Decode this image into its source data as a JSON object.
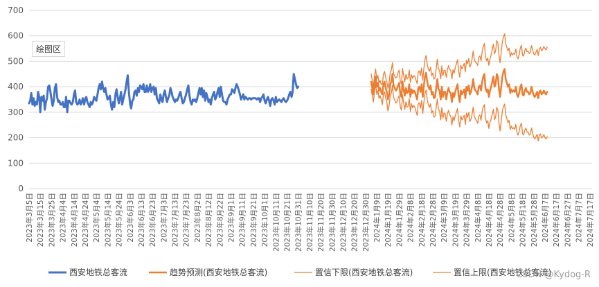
{
  "plot_area_label": "绘图区",
  "watermark": "CSDN @Kydog-R",
  "colors": {
    "actual": "#4472C4",
    "forecast": "#ED7D31",
    "grid": "#d9d9d9",
    "axis_text": "#595959"
  },
  "chart_data": {
    "type": "line",
    "title": "",
    "xlabel": "",
    "ylabel": "",
    "ylim": [
      0,
      700
    ],
    "yticks": [
      0,
      100,
      200,
      300,
      400,
      500,
      600,
      700
    ],
    "grid": "horizontal",
    "legend_position": "bottom",
    "x_tick_labels": [
      "2023年3月5日",
      "2023年3月15日",
      "2023年3月25日",
      "2023年4月4日",
      "2023年4月14日",
      "2023年4月24日",
      "2023年5月4日",
      "2023年5月14日",
      "2023年5月24日",
      "2023年6月3日",
      "2023年6月13日",
      "2023年6月23日",
      "2023年7月3日",
      "2023年7月13日",
      "2023年7月23日",
      "2023年8月2日",
      "2023年8月12日",
      "2023年8月22日",
      "2023年9月1日",
      "2023年9月11日",
      "2023年9月21日",
      "2023年10月1日",
      "2023年10月11日",
      "2023年10月21日",
      "2023年10月31日",
      "2023年11月10日",
      "2023年11月20日",
      "2023年11月30日",
      "2023年12月10日",
      "2023年12月20日",
      "2023年12月30日",
      "2024年1月9日",
      "2024年1月19日",
      "2024年1月29日",
      "2024年2月8日",
      "2024年2月18日",
      "2024年2月28日",
      "2024年3月9日",
      "2024年3月19日",
      "2024年3月29日",
      "2024年4月8日",
      "2024年4月18日",
      "2024年4月28日",
      "2024年5月8日",
      "2024年5月18日",
      "2024年5月28日",
      "2024年6月7日",
      "2024年6月17日",
      "2024年6月27日",
      "2024年7月7日",
      "2024年7月17日"
    ],
    "x_start": "2023-03-05",
    "series": [
      {
        "name": "西安地铁总客流",
        "start": "2023-03-05",
        "values": [
          335,
          345,
          375,
          330,
          355,
          325,
          340,
          330,
          380,
          360,
          300,
          360,
          345,
          365,
          310,
          340,
          355,
          400,
          405,
          380,
          350,
          325,
          345,
          395,
          410,
          360,
          340,
          345,
          330,
          330,
          340,
          320,
          320,
          360,
          300,
          345,
          345,
          335,
          330,
          340,
          370,
          385,
          340,
          330,
          335,
          350,
          330,
          340,
          355,
          330,
          350,
          360,
          340,
          330,
          320,
          340,
          330,
          340,
          360,
          350,
          345,
          370,
          395,
          410,
          390,
          420,
          395,
          380,
          395,
          370,
          350,
          355,
          365,
          330,
          310,
          340,
          320,
          370,
          390,
          360,
          335,
          355,
          380,
          330,
          350,
          370,
          390,
          420,
          445,
          380,
          335,
          315,
          345,
          350,
          380,
          385,
          365,
          395,
          380,
          405,
          400,
          390,
          410,
          380,
          380,
          405,
          380,
          390,
          410,
          380,
          395,
          400,
          370,
          395,
          355,
          345,
          335,
          370,
          350,
          340,
          370,
          385,
          360,
          340,
          355,
          365,
          395,
          380,
          360,
          350,
          340,
          350,
          345,
          355,
          370,
          380,
          355,
          335,
          340,
          355,
          370,
          390,
          405,
          365,
          340,
          330,
          350,
          345,
          350,
          340,
          355,
          375,
          395,
          370,
          395,
          360,
          385,
          345,
          375,
          360,
          340,
          350,
          330,
          355,
          370,
          380,
          350,
          360,
          380,
          395,
          360,
          400,
          370,
          345,
          340,
          340,
          330,
          350,
          360,
          370,
          370,
          390,
          385,
          375,
          395,
          410,
          400,
          385,
          370,
          350,
          360,
          370,
          350,
          360,
          355,
          350,
          355,
          355,
          350,
          355,
          355,
          355,
          355,
          350,
          355,
          355,
          340,
          355,
          360,
          370,
          345,
          335,
          350,
          360,
          345,
          325,
          350,
          355,
          345,
          330,
          360,
          340,
          345,
          350,
          345,
          340,
          350,
          355,
          345,
          340,
          345,
          355,
          370,
          380,
          360,
          380,
          450,
          430,
          410,
          395,
          400
        ],
        "color": "#4472C4"
      },
      {
        "name": "趋势预测(西安地铁总客流)",
        "start": "2024-01-04",
        "values": [
          420,
          395,
          370,
          410,
          440,
          400,
          415,
          385,
          395,
          380,
          370,
          410,
          420,
          395,
          380,
          350,
          370,
          410,
          420,
          450,
          405,
          395,
          385,
          390,
          405,
          415,
          370,
          360,
          420,
          390,
          365,
          395,
          375,
          380,
          410,
          360,
          390,
          375,
          385,
          380,
          365,
          350,
          395,
          400,
          380,
          410,
          360,
          405,
          440,
          455,
          420,
          400,
          390,
          405,
          370,
          380,
          355,
          360,
          395,
          430,
          390,
          385,
          350,
          400,
          360,
          380,
          380,
          350,
          380,
          395,
          380,
          375,
          340,
          375,
          360,
          380,
          395,
          410,
          365,
          340,
          385,
          370,
          380,
          390,
          355,
          400,
          385,
          405,
          370,
          380,
          400,
          430,
          395,
          385,
          380,
          370,
          400,
          405,
          385,
          420,
          440,
          450,
          395,
          380,
          390,
          360,
          385,
          400,
          420,
          440,
          400,
          410,
          450,
          440,
          390,
          360,
          400,
          440,
          460,
          470,
          430,
          415,
          400,
          410,
          375,
          390,
          380,
          385,
          380,
          400,
          370,
          360,
          375,
          400,
          410,
          370,
          365,
          385,
          395,
          380,
          380,
          370,
          375,
          400,
          380,
          365,
          360,
          370,
          380,
          355,
          380,
          385,
          370,
          375,
          385,
          375,
          370,
          380
        ],
        "color": "#ED7D31"
      },
      {
        "name": "置信下限(西安地铁总客流)",
        "start": "2024-01-04",
        "values": [
          390,
          365,
          340,
          380,
          410,
          370,
          385,
          355,
          365,
          350,
          330,
          370,
          380,
          355,
          340,
          305,
          325,
          365,
          375,
          405,
          358,
          348,
          336,
          341,
          355,
          365,
          320,
          308,
          368,
          337,
          311,
          341,
          320,
          324,
          354,
          303,
          333,
          317,
          326,
          320,
          304,
          288,
          333,
          337,
          316,
          346,
          295,
          339,
          373,
          387,
          351,
          330,
          319,
          333,
          297,
          306,
          280,
          284,
          318,
          352,
          311,
          305,
          269,
          318,
          277,
          296,
          295,
          264,
          293,
          307,
          291,
          285,
          249,
          283,
          267,
          286,
          300,
          314,
          268,
          242,
          286,
          270,
          279,
          288,
          252,
          296,
          280,
          299,
          263,
          272,
          291,
          320,
          284,
          273,
          267,
          256,
          285,
          289,
          268,
          302,
          321,
          330,
          274,
          258,
          267,
          236,
          260,
          274,
          293,
          312,
          271,
          280,
          319,
          308,
          257,
          226,
          265,
          304,
          323,
          332,
          291,
          275,
          259,
          268,
          232,
          246,
          235,
          239,
          233,
          252,
          221,
          210,
          224,
          248,
          257,
          216,
          210,
          229,
          238,
          222,
          221,
          210,
          214,
          238,
          217,
          201,
          195,
          204,
          213,
          187,
          211,
          215,
          199,
          203,
          212,
          201,
          195,
          204
        ],
        "color": "#ED7D31"
      },
      {
        "name": "置信上限(西安地铁总客流)",
        "start": "2024-01-04",
        "values": [
          450,
          425,
          400,
          440,
          470,
          430,
          445,
          415,
          425,
          410,
          410,
          450,
          460,
          435,
          420,
          395,
          415,
          455,
          465,
          495,
          452,
          442,
          434,
          439,
          455,
          465,
          420,
          412,
          472,
          443,
          419,
          449,
          430,
          436,
          466,
          417,
          447,
          433,
          444,
          440,
          426,
          412,
          457,
          463,
          444,
          474,
          425,
          471,
          507,
          523,
          489,
          470,
          461,
          477,
          443,
          454,
          430,
          436,
          472,
          508,
          469,
          465,
          431,
          482,
          443,
          464,
          465,
          436,
          467,
          483,
          469,
          465,
          431,
          467,
          453,
          474,
          490,
          506,
          462,
          438,
          484,
          470,
          481,
          492,
          458,
          504,
          490,
          511,
          477,
          488,
          509,
          540,
          506,
          497,
          493,
          484,
          515,
          521,
          502,
          538,
          559,
          570,
          516,
          502,
          513,
          484,
          510,
          526,
          547,
          568,
          529,
          540,
          581,
          572,
          523,
          494,
          535,
          576,
          597,
          608,
          569,
          555,
          541,
          552,
          518,
          534,
          525,
          531,
          527,
          548,
          519,
          510,
          526,
          552,
          563,
          524,
          520,
          541,
          552,
          538,
          539,
          530,
          536,
          562,
          543,
          529,
          525,
          536,
          547,
          523,
          549,
          555,
          541,
          547,
          558,
          549,
          545,
          556
        ],
        "color": "#ED7D31"
      }
    ]
  },
  "legend": [
    {
      "label": "西安地铁总客流",
      "color": "#4472C4",
      "width": 3
    },
    {
      "label": "趋势预测(西安地铁总客流)",
      "color": "#ED7D31",
      "width": 2.5
    },
    {
      "label": "置信下限(西安地铁总客流)",
      "color": "#ED7D31",
      "width": 1.2
    },
    {
      "label": "置信上限(西安地铁总客流)",
      "color": "#ED7D31",
      "width": 1.2
    }
  ]
}
